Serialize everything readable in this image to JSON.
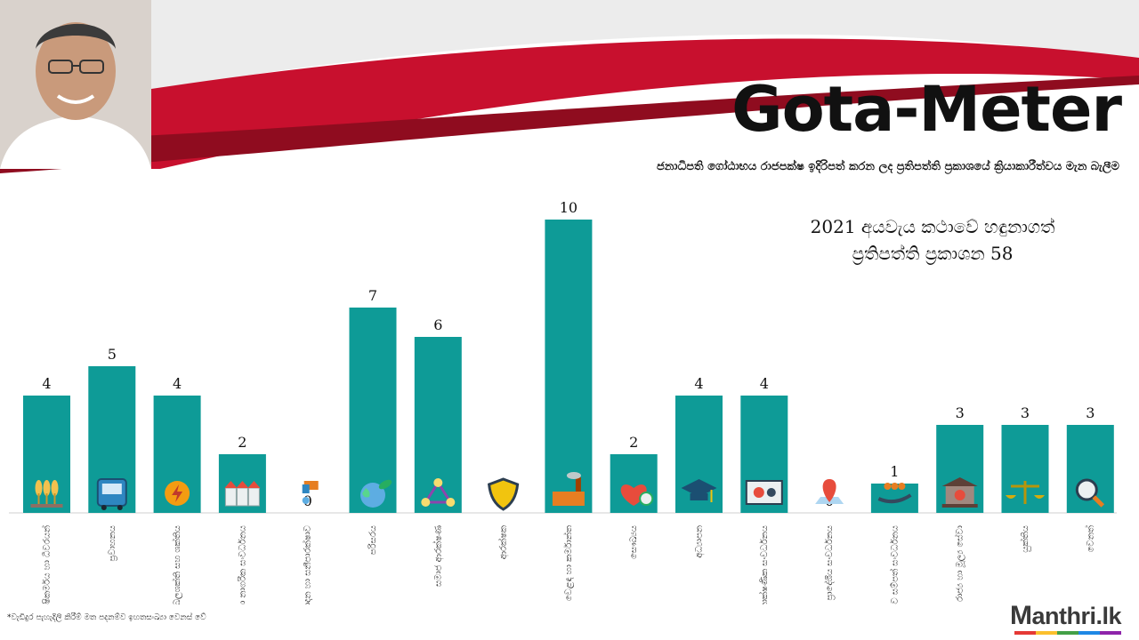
{
  "header": {
    "title": "Gota-Meter",
    "subtitle": "ජනාධිපති ගෝඨාභය රාජපක්ෂ ඉදිරිපත් කරන ලද ප්‍රතිපත්ති ප්‍රකාශයේ ක්‍රියාකාරීත්වය මැන බැලීම",
    "colors": {
      "banner_red": "#c8102e",
      "banner_dark": "#8f0c1f",
      "banner_grey": "#e6e6e6"
    }
  },
  "chart_data": {
    "type": "bar",
    "title": "",
    "annotation_lines": [
      "2021 අයවැය කථාවේ හඳුනාගත්",
      "ප්‍රතිපත්ති ප්‍රකාශන 58"
    ],
    "categories": [
      "කෘෂිකර්මය හා ධීවරයන්",
      "ප්‍රවාහනය",
      "බලශක්ති සහ ශක්තිය",
      "නිවාස හා නාගරික සංවර්ධනය",
      "ජල සම්පාදන හා සනීපාරක්ෂාව",
      "පරිසරය",
      "සමාජ ආරක්ෂණ",
      "ආරක්ෂක",
      "වෙළඳ හා කර්මාන්ත",
      "සෞඛ්‍යය",
      "අධ්‍යාපන",
      "තාක්ෂණික සංවර්ධනය",
      "ප්‍රාදේශීය සංවර්ධනය",
      "වෙනත් මානව සම්පත් සංවර්ධනය",
      "රාජ්‍ය හා මූල්‍ය සේවා",
      "යුක්තිය",
      "වෙනත්"
    ],
    "values": [
      4,
      5,
      4,
      2,
      0,
      7,
      6,
      0,
      10,
      2,
      4,
      4,
      0,
      1,
      3,
      3,
      3
    ],
    "icons": [
      "wheat-icon",
      "bus-icon",
      "lightning-icon",
      "houses-icon",
      "water-tap-icon",
      "globe-leaf-icon",
      "network-people-icon",
      "shield-icon",
      "factory-icon",
      "heart-plus-icon",
      "graduation-cap-icon",
      "monitor-gears-icon",
      "map-pin-icon",
      "hand-people-icon",
      "bank-icon",
      "scales-icon",
      "magnifier-icon"
    ],
    "ylim": [
      0,
      10
    ],
    "grid": false,
    "bar_color": "#0e9b97"
  },
  "footnote": "*වැඩිදුර පැහැදිලි කිරීම් මත පදනම්ව ඉහතසංඛ්‍යා වෙනස් වේ",
  "logo": {
    "initial": "M",
    "rest": "anthri.lk",
    "colors": [
      "#e53935",
      "#fbc02d",
      "#43a047",
      "#1e88e5",
      "#8e24aa"
    ]
  }
}
